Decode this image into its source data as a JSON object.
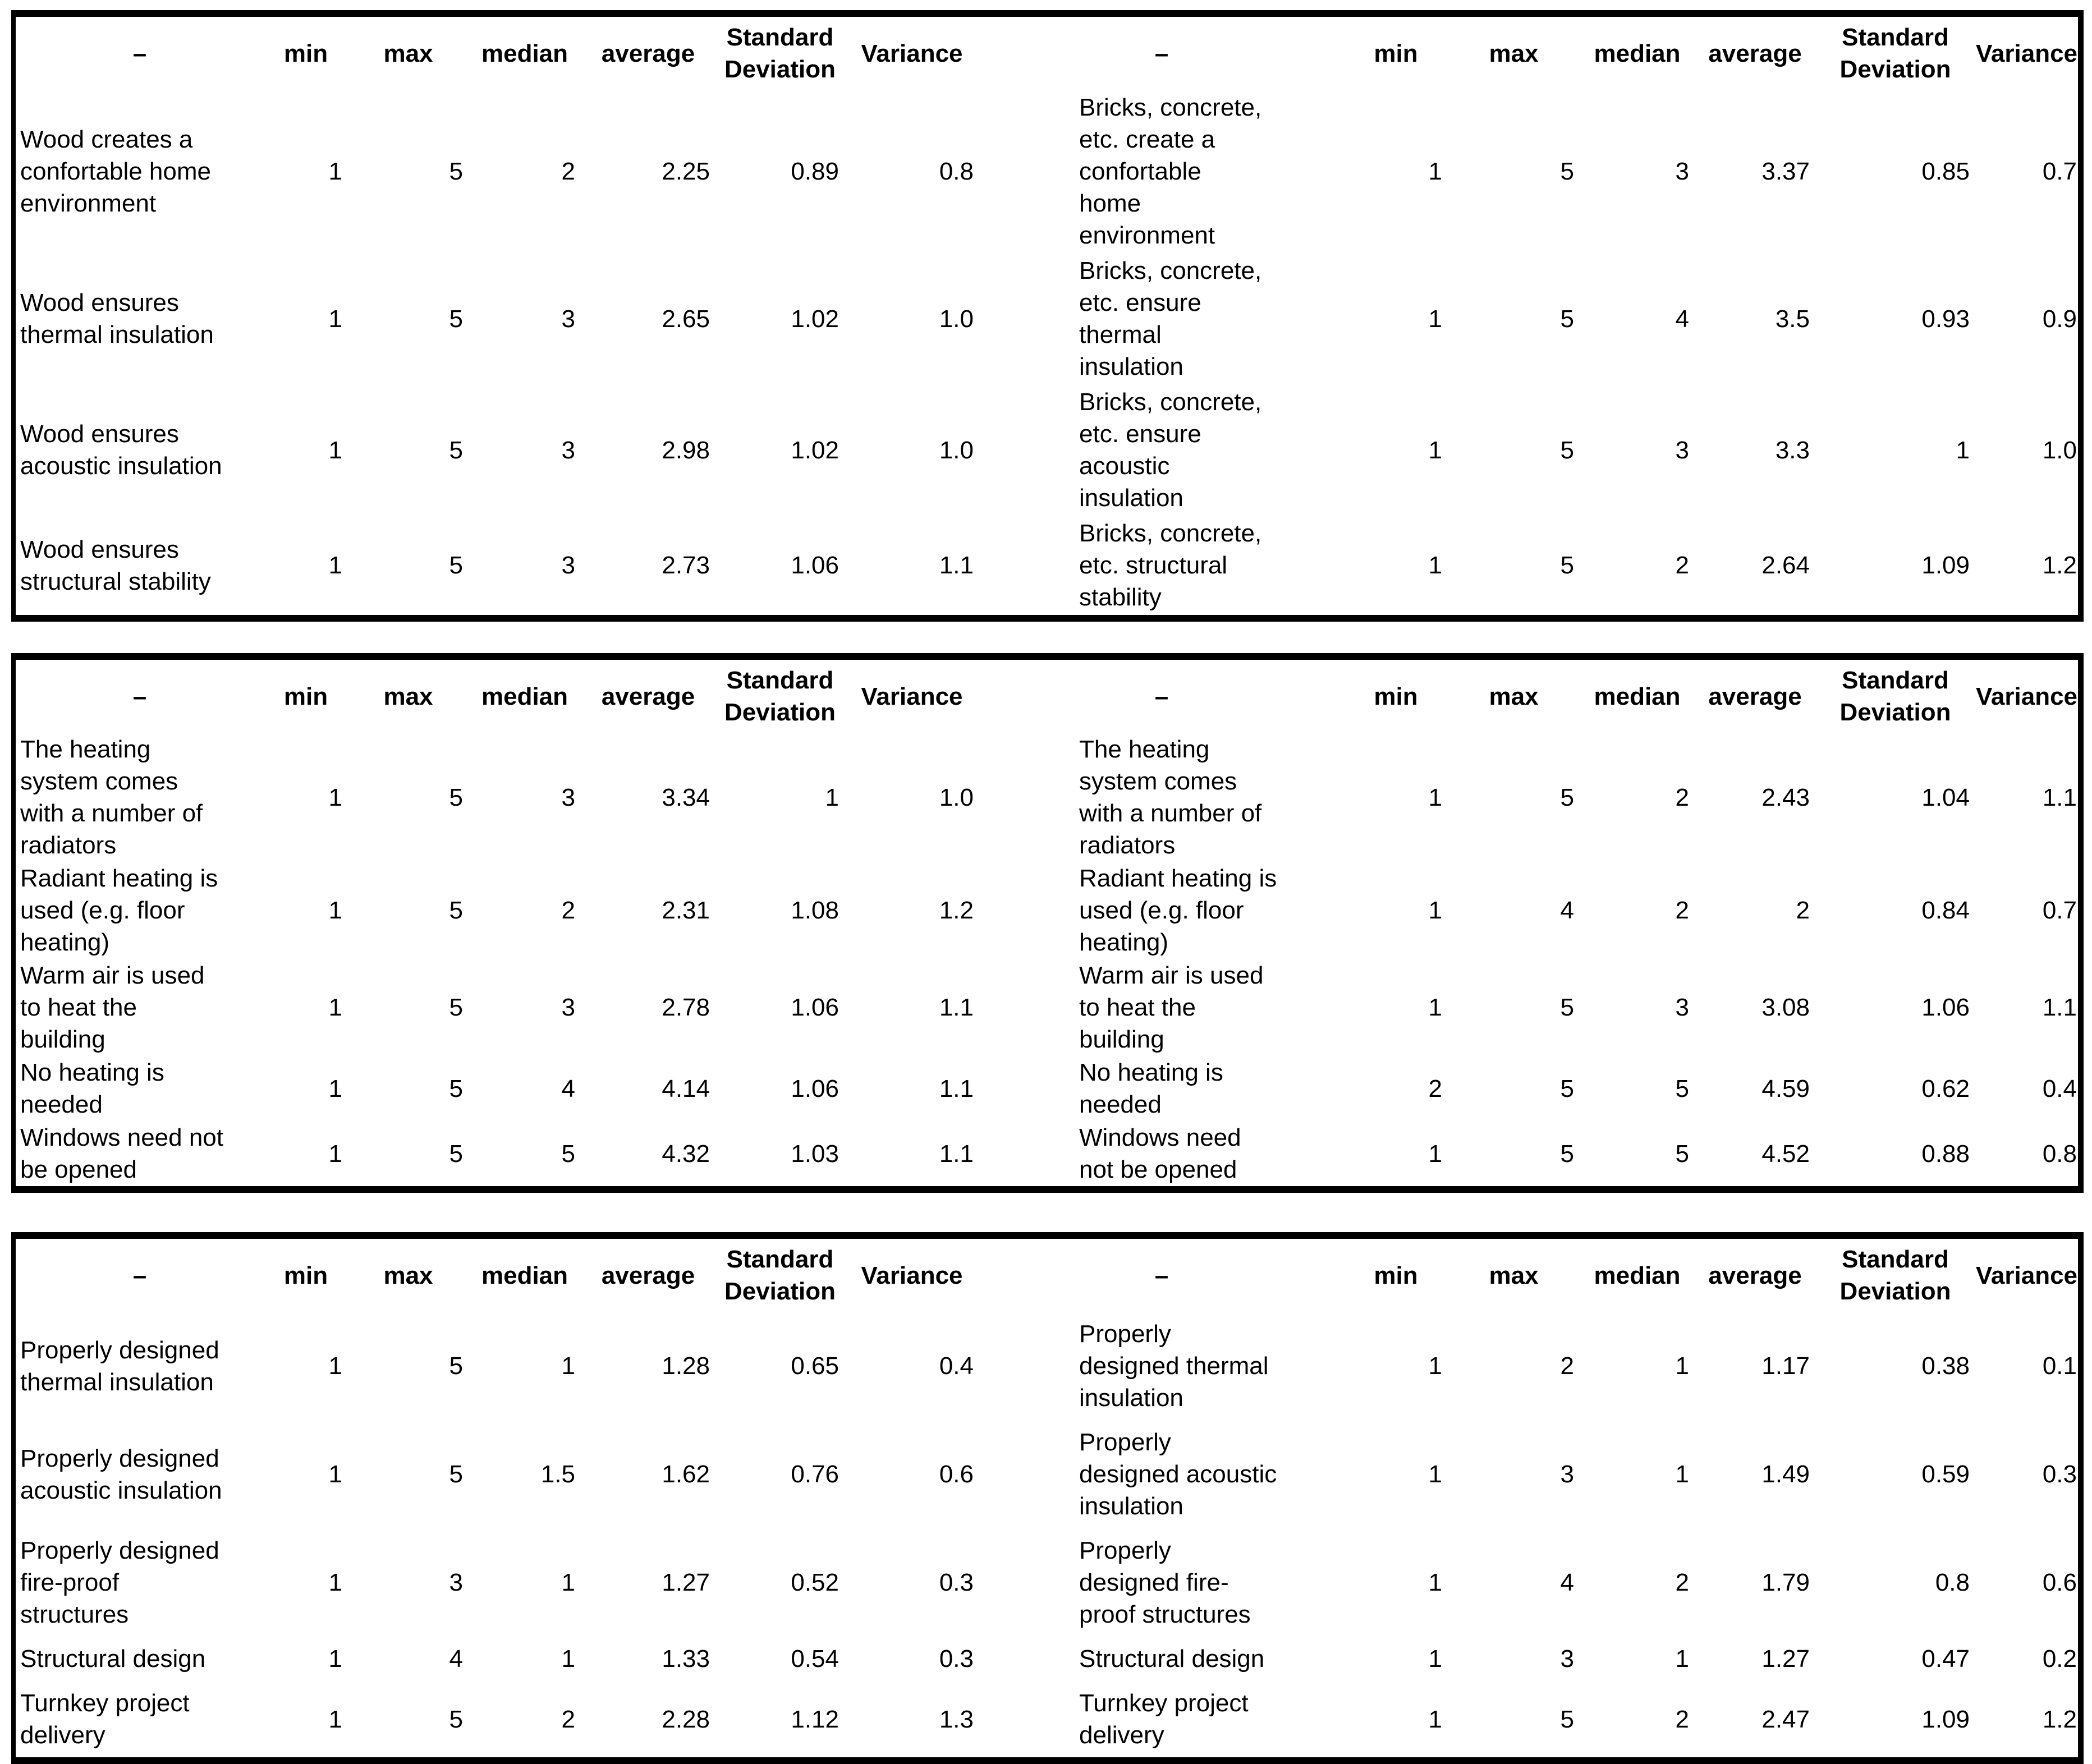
{
  "page": {
    "background_color": "#ffffff",
    "text_color": "#000000",
    "border_color": "#000000"
  },
  "columns": {
    "label": "–",
    "min": "min",
    "max": "max",
    "median": "median",
    "average": "average",
    "std_deviation": "Standard\nDeviation",
    "variance": "Variance"
  },
  "tables": [
    {
      "name": "wood-vs-bricks-statements",
      "rows": [
        {
          "left": {
            "label": "Wood creates a\nconfortable home\nenvironment",
            "values": [
              "1",
              "5",
              "2",
              "2.25",
              "0.89",
              "0.8"
            ]
          },
          "right": {
            "label": "Bricks, concrete,\netc. create a\nconfortable\nhome\nenvironment",
            "values": [
              "1",
              "5",
              "3",
              "3.37",
              "0.85",
              "0.7"
            ]
          }
        },
        {
          "left": {
            "label": "Wood ensures\nthermal insulation",
            "values": [
              "1",
              "5",
              "3",
              "2.65",
              "1.02",
              "1.0"
            ]
          },
          "right": {
            "label": "Bricks, concrete,\netc. ensure\nthermal\ninsulation",
            "values": [
              "1",
              "5",
              "4",
              "3.5",
              "0.93",
              "0.9"
            ]
          }
        },
        {
          "left": {
            "label": "Wood ensures\nacoustic insulation",
            "values": [
              "1",
              "5",
              "3",
              "2.98",
              "1.02",
              "1.0"
            ]
          },
          "right": {
            "label": "Bricks, concrete,\netc. ensure\nacoustic\ninsulation",
            "values": [
              "1",
              "5",
              "3",
              "3.3",
              "1",
              "1.0"
            ]
          }
        },
        {
          "left": {
            "label": "Wood ensures\nstructural stability",
            "values": [
              "1",
              "5",
              "3",
              "2.73",
              "1.06",
              "1.1"
            ]
          },
          "right": {
            "label": "Bricks, concrete,\netc. structural\nstability",
            "values": [
              "1",
              "5",
              "2",
              "2.64",
              "1.09",
              "1.2"
            ]
          }
        }
      ]
    },
    {
      "name": "heating-system-statements",
      "rows": [
        {
          "left": {
            "label": "The heating\nsystem comes\nwith a number of\nradiators",
            "values": [
              "1",
              "5",
              "3",
              "3.34",
              "1",
              "1.0"
            ]
          },
          "right": {
            "label": "The heating\nsystem comes\nwith a number of\nradiators",
            "values": [
              "1",
              "5",
              "2",
              "2.43",
              "1.04",
              "1.1"
            ]
          }
        },
        {
          "left": {
            "label": "Radiant heating is\nused (e.g. floor\nheating)",
            "values": [
              "1",
              "5",
              "2",
              "2.31",
              "1.08",
              "1.2"
            ]
          },
          "right": {
            "label": "Radiant heating is\nused (e.g. floor\nheating)",
            "values": [
              "1",
              "4",
              "2",
              "2",
              "0.84",
              "0.7"
            ]
          }
        },
        {
          "left": {
            "label": "Warm air is used\nto heat the\nbuilding",
            "values": [
              "1",
              "5",
              "3",
              "2.78",
              "1.06",
              "1.1"
            ]
          },
          "right": {
            "label": "Warm air is used\nto heat the\nbuilding",
            "values": [
              "1",
              "5",
              "3",
              "3.08",
              "1.06",
              "1.1"
            ]
          }
        },
        {
          "left": {
            "label": "No heating is\nneeded",
            "values": [
              "1",
              "5",
              "4",
              "4.14",
              "1.06",
              "1.1"
            ]
          },
          "right": {
            "label": "No heating is\nneeded",
            "values": [
              "2",
              "5",
              "5",
              "4.59",
              "0.62",
              "0.4"
            ]
          }
        },
        {
          "left": {
            "label": "Windows need not\nbe opened",
            "values": [
              "1",
              "5",
              "5",
              "4.32",
              "1.03",
              "1.1"
            ]
          },
          "right": {
            "label": "Windows need\nnot be opened",
            "values": [
              "1",
              "5",
              "5",
              "4.52",
              "0.88",
              "0.8"
            ]
          }
        }
      ]
    },
    {
      "name": "design-services-statements",
      "rows": [
        {
          "left": {
            "label": "Properly designed\nthermal insulation",
            "values": [
              "1",
              "5",
              "1",
              "1.28",
              "0.65",
              "0.4"
            ]
          },
          "right": {
            "label": "Properly\ndesigned thermal\ninsulation",
            "values": [
              "1",
              "2",
              "1",
              "1.17",
              "0.38",
              "0.1"
            ]
          }
        },
        {
          "left": {
            "label": "Properly designed\nacoustic insulation",
            "values": [
              "1",
              "5",
              "1.5",
              "1.62",
              "0.76",
              "0.6"
            ]
          },
          "right": {
            "label": "Properly\ndesigned acoustic\ninsulation",
            "values": [
              "1",
              "3",
              "1",
              "1.49",
              "0.59",
              "0.3"
            ]
          }
        },
        {
          "left": {
            "label": "Properly designed\nfire-proof\nstructures",
            "values": [
              "1",
              "3",
              "1",
              "1.27",
              "0.52",
              "0.3"
            ]
          },
          "right": {
            "label": "Properly\ndesigned fire-\nproof structures",
            "values": [
              "1",
              "4",
              "2",
              "1.79",
              "0.8",
              "0.6"
            ]
          }
        },
        {
          "left": {
            "label": "Structural design",
            "values": [
              "1",
              "4",
              "1",
              "1.33",
              "0.54",
              "0.3"
            ]
          },
          "right": {
            "label": "Structural design",
            "values": [
              "1",
              "3",
              "1",
              "1.27",
              "0.47",
              "0.2"
            ]
          }
        },
        {
          "left": {
            "label": "Turnkey project\ndelivery",
            "values": [
              "1",
              "5",
              "2",
              "2.28",
              "1.12",
              "1.3"
            ]
          },
          "right": {
            "label": "Turnkey project\ndelivery",
            "values": [
              "1",
              "5",
              "2",
              "2.47",
              "1.09",
              "1.2"
            ]
          }
        }
      ]
    }
  ]
}
